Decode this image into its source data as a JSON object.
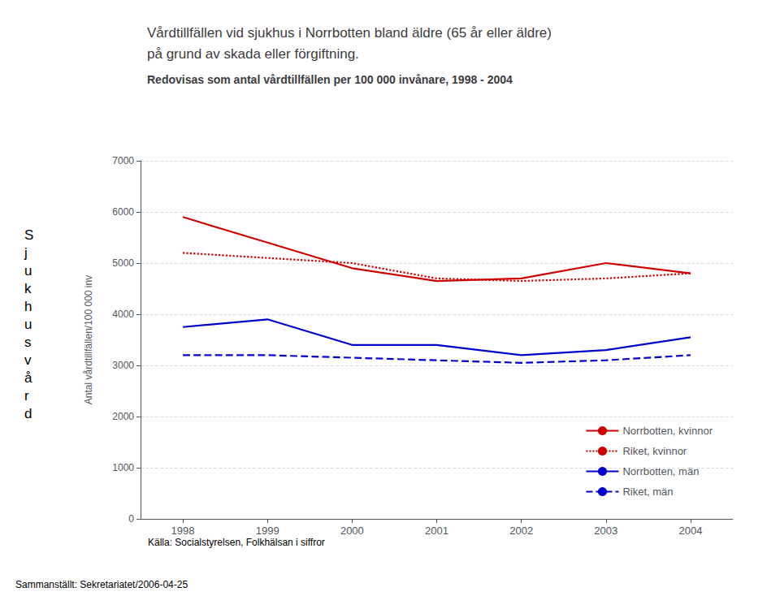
{
  "chart_data": {
    "type": "line",
    "title": "Vårdtillfällen vid sjukhus i Norrbotten bland äldre (65 år eller äldre)\npå grund av skada eller förgiftning.",
    "subtitle": "Redovisas som antal vårdtillfällen per 100 000 invånare, 1998 - 2004",
    "ylabel": "Antal vårdtillfällen/100 000 inv",
    "annotations": [
      "Källa: Socialstyrelsen, Folkhälsan i siffror",
      "Sammanställt: Sekretariatet/2006-04-25",
      "S\nj\nu\nk\nh\nu\ns\nv\nå\nr\nd"
    ],
    "x": [
      1998,
      1999,
      2000,
      2001,
      2002,
      2003,
      2004
    ],
    "series": [
      {
        "name": "Norrbotten, kvinnor",
        "color": "#CC0000",
        "line_style": "solid",
        "values": [
          5900,
          5400,
          4900,
          4650,
          4700,
          5000,
          4800
        ]
      },
      {
        "name": "Riket, kvinnor",
        "color": "#CC0000",
        "line_style": "dotted",
        "values": [
          5200,
          5100,
          5000,
          4700,
          4650,
          4700,
          4800
        ]
      },
      {
        "name": "Norrbotten, män",
        "color": "#0000CC",
        "line_style": "solid",
        "values": [
          3750,
          3900,
          3400,
          3400,
          3200,
          3300,
          3550
        ]
      },
      {
        "name": "Riket, män",
        "color": "#0000CC",
        "line_style": "dashed",
        "values": [
          3200,
          3200,
          3150,
          3100,
          3050,
          3100,
          3200
        ]
      }
    ],
    "xlim": [
      1997.5,
      2004.5
    ],
    "xticks": [
      1998,
      1999,
      2000,
      2001,
      2002,
      2003,
      2004
    ],
    "ylim": [
      0,
      7000
    ],
    "yticks": [
      0,
      1000,
      2000,
      3000,
      4000,
      5000,
      6000,
      7000
    ],
    "grid": true,
    "legend": "lower right"
  }
}
